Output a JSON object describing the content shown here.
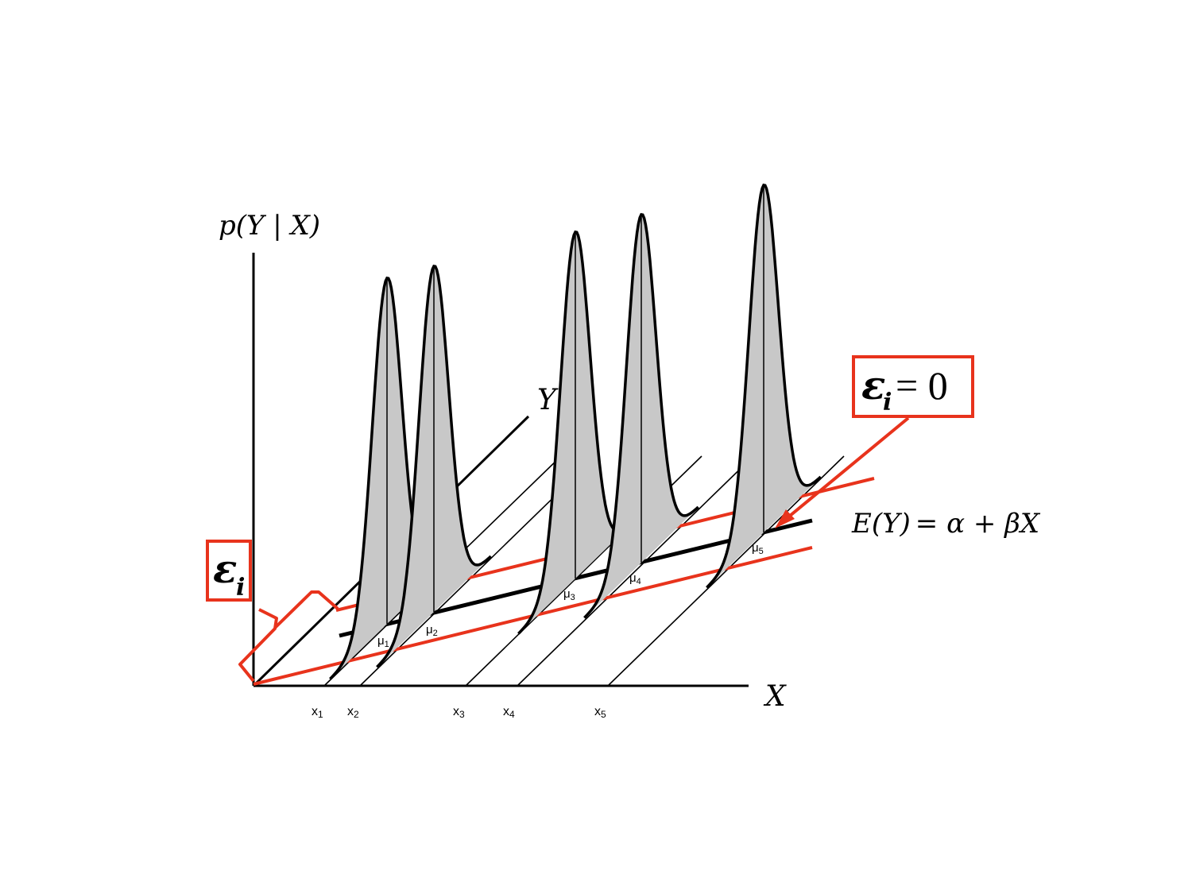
{
  "axes": {
    "density_label_parts": [
      "p(",
      "Y",
      " | ",
      "X",
      ")"
    ],
    "y_label": "Y",
    "x_label": "X"
  },
  "x_ticks": [
    {
      "var": "x",
      "sub": "1"
    },
    {
      "var": "x",
      "sub": "2"
    },
    {
      "var": "x",
      "sub": "3"
    },
    {
      "var": "x",
      "sub": "4"
    },
    {
      "var": "x",
      "sub": "5"
    }
  ],
  "means": [
    {
      "var": "μ",
      "sub": "1"
    },
    {
      "var": "μ",
      "sub": "2"
    },
    {
      "var": "μ",
      "sub": "3"
    },
    {
      "var": "μ",
      "sub": "4"
    },
    {
      "var": "μ",
      "sub": "5"
    }
  ],
  "regression": {
    "lhs": "E(Y)",
    "rhs_parts": [
      "= ",
      "α",
      " + ",
      "β",
      "X"
    ]
  },
  "error_box": {
    "symbol": "ε",
    "sub": "i"
  },
  "error_zero_box": {
    "symbol": "ε",
    "sub": "i",
    "rest": " = 0"
  },
  "colors": {
    "ink": "#000000",
    "accent_red": "#e8331c",
    "curve_fill": "#c8c8c8"
  }
}
